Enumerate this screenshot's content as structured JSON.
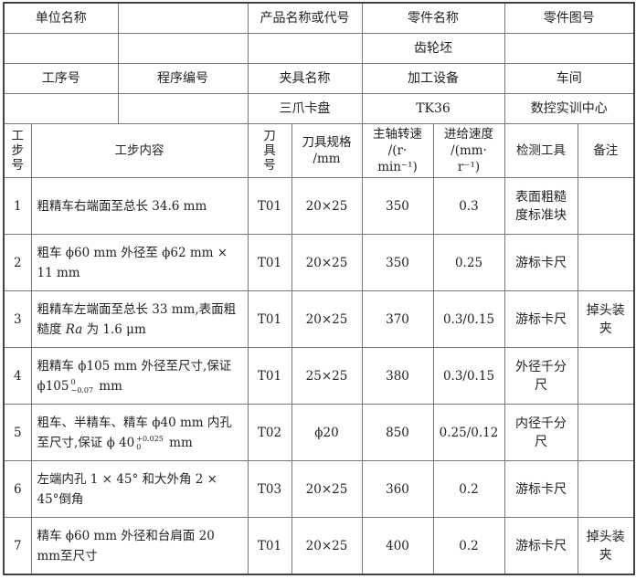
{
  "header": {
    "unit_name_label": "单位名称",
    "unit_name_value": "",
    "product_label": "产品名称或代号",
    "part_name_label": "零件名称",
    "part_name_value": "齿轮坯",
    "part_drawing_label": "零件图号",
    "process_no_label": "工序号",
    "program_no_label": "程序编号",
    "fixture_label": "夹具名称",
    "fixture_value": "三爪卡盘",
    "equipment_label": "加工设备",
    "equipment_value": "TK36",
    "workshop_label": "车间",
    "workshop_value": "数控实训中心"
  },
  "columns": {
    "step_no": "工步号",
    "content": "工步内容",
    "tool_no": "刀具号",
    "tool_spec_1": "刀具规格",
    "tool_spec_2": "/mm",
    "spindle_1": "主轴转速",
    "spindle_2": "/(r·",
    "spindle_3": "min⁻¹)",
    "feed_1": "进给速度",
    "feed_2": "/(mm·",
    "feed_3": "r⁻¹)",
    "inspection": "检测工具",
    "remark": "备注"
  },
  "steps": [
    {
      "no": "1",
      "content_a": "粗精车右端面至总长 34.6 mm",
      "tool": "T01",
      "spec": "20×25",
      "speed": "350",
      "feed": "0.3",
      "inspect": "表面粗糙度标准块",
      "remark": ""
    },
    {
      "no": "2",
      "content_a": "粗车 ϕ60 mm 外径至 ϕ62 mm × 11 mm",
      "tool": "T01",
      "spec": "20×25",
      "speed": "350",
      "feed": "0.25",
      "inspect": "游标卡尺",
      "remark": ""
    },
    {
      "no": "3",
      "content_a": "粗精车左端面至总长 33 mm,表面粗糙度 ",
      "content_ra": "Ra",
      "content_b": " 为 1.6 μm",
      "tool": "T01",
      "spec": "20×25",
      "speed": "370",
      "feed": "0.3/0.15",
      "inspect": "游标卡尺",
      "remark": "掉头装夹"
    },
    {
      "no": "4",
      "content_a": "粗精车 ϕ105 mm 外径至尺寸,保证 ϕ105",
      "tol_upper": "0",
      "tol_lower": "−0.07",
      "content_b": " mm",
      "tool": "T01",
      "spec": "25×25",
      "speed": "380",
      "feed": "0.3/0.15",
      "inspect": "外径千分尺",
      "remark": ""
    },
    {
      "no": "5",
      "content_a": "粗车、半精车、精车 ϕ40 mm 内孔至尺寸,保证 ϕ 40",
      "tol_upper": "+0.025",
      "tol_lower": "0",
      "content_b": " mm",
      "tool": "T02",
      "spec": "ϕ20",
      "speed": "850",
      "feed": "0.25/0.12",
      "inspect": "内径千分尺",
      "remark": ""
    },
    {
      "no": "6",
      "content_a": "左端内孔 1 × 45° 和大外角 2 × 45°倒角",
      "tool": "T03",
      "spec": "20×25",
      "speed": "360",
      "feed": "0.2",
      "inspect": "游标卡尺",
      "remark": ""
    },
    {
      "no": "7",
      "content_a": "精车 ϕ60 mm 外径和台肩面 20 mm至尺寸",
      "tool": "T01",
      "spec": "20×25",
      "speed": "400",
      "feed": "0.2",
      "inspect": "游标卡尺",
      "remark": "掉头装夹"
    }
  ]
}
